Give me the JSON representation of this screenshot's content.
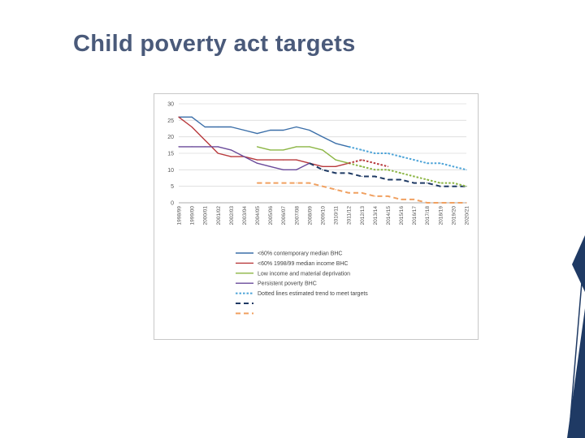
{
  "slide": {
    "title": "Child poverty act targets"
  },
  "colors": {
    "contemporary": "#3a6ea8",
    "median9899": "#b8393c",
    "deprivation": "#8bb543",
    "persistent": "#6a4a9a",
    "trend_blue": "#4ea4d8",
    "trend_dark": "#1f3a64",
    "trend_orange": "#f0a060",
    "accent": "#1f3a64"
  },
  "chart_data": {
    "type": "line",
    "title": "",
    "xlabel": "",
    "ylabel": "",
    "ylim": [
      0,
      30
    ],
    "yticks": [
      0,
      5,
      10,
      15,
      20,
      25,
      30
    ],
    "grid": true,
    "legend_position": "bottom",
    "categories": [
      "1998/99",
      "1999/00",
      "2000/01",
      "2001/02",
      "2002/03",
      "2003/04",
      "2004/05",
      "2005/06",
      "2006/07",
      "2007/08",
      "2008/09",
      "2009/10",
      "2010/11",
      "2011/12",
      "2012/13",
      "2013/14",
      "2014/15",
      "2015/16",
      "2016/17",
      "2017/18",
      "2018/19",
      "2019/20",
      "2020/21"
    ],
    "series": [
      {
        "name": "<60% contemporary median BHC",
        "style": "solid",
        "color_key": "contemporary",
        "values": [
          26,
          26,
          23,
          23,
          23,
          22,
          21,
          22,
          22,
          23,
          22,
          20,
          18,
          17,
          null,
          null,
          null,
          null,
          null,
          null,
          null,
          null,
          null
        ]
      },
      {
        "name": "<60% 1998/99 median income BHC",
        "style": "solid",
        "color_key": "median9899",
        "values": [
          26,
          23,
          19,
          15,
          14,
          14,
          13,
          13,
          13,
          13,
          12,
          11,
          11,
          12,
          null,
          null,
          null,
          null,
          null,
          null,
          null,
          null,
          null
        ]
      },
      {
        "name": "Low income and material deprivation",
        "style": "solid",
        "color_key": "deprivation",
        "values": [
          null,
          null,
          null,
          null,
          null,
          null,
          17,
          16,
          16,
          17,
          17,
          16,
          13,
          12,
          null,
          null,
          null,
          null,
          null,
          null,
          null,
          null,
          null
        ]
      },
      {
        "name": "Persistent poverty BHC",
        "style": "solid",
        "color_key": "persistent",
        "values": [
          17,
          17,
          17,
          17,
          16,
          14,
          12,
          11,
          10,
          10,
          12,
          null,
          null,
          null,
          null,
          null,
          null,
          null,
          null,
          null,
          null,
          null,
          null
        ]
      },
      {
        "name": "Dotted lines estimated trend to meet targets",
        "style": "dotted",
        "color_key": "trend_blue",
        "values": [
          null,
          null,
          null,
          null,
          null,
          null,
          null,
          null,
          null,
          null,
          null,
          null,
          null,
          17,
          16,
          15,
          15,
          14,
          13,
          12,
          12,
          11,
          10
        ]
      },
      {
        "name": "",
        "style": "dashed",
        "color_key": "trend_dark",
        "values": [
          null,
          null,
          null,
          null,
          null,
          null,
          null,
          null,
          null,
          null,
          12,
          10,
          9,
          9,
          8,
          8,
          7,
          7,
          6,
          6,
          5,
          5,
          5
        ]
      },
      {
        "name": "",
        "style": "dashed",
        "color_key": "trend_orange",
        "values": [
          null,
          null,
          null,
          null,
          null,
          null,
          6,
          6,
          6,
          6,
          6,
          5,
          4,
          3,
          3,
          2,
          2,
          1,
          1,
          0,
          0,
          0,
          0
        ]
      },
      {
        "name": "",
        "style": "dotted",
        "color_key": "deprivation",
        "values": [
          null,
          null,
          null,
          null,
          null,
          null,
          null,
          null,
          null,
          null,
          null,
          null,
          null,
          12,
          11,
          10,
          10,
          9,
          8,
          7,
          6,
          6,
          5
        ]
      },
      {
        "name": "",
        "style": "dotted",
        "color_key": "median9899",
        "values": [
          null,
          null,
          null,
          null,
          null,
          null,
          null,
          null,
          null,
          null,
          null,
          null,
          null,
          12,
          13,
          12,
          11,
          null,
          null,
          null,
          null,
          null,
          null
        ]
      }
    ],
    "legend": [
      {
        "label": "<60% contemporary median BHC",
        "style": "solid",
        "color_key": "contemporary"
      },
      {
        "label": "<60% 1998/99 median income BHC",
        "style": "solid",
        "color_key": "median9899"
      },
      {
        "label": "Low income and material deprivation",
        "style": "solid",
        "color_key": "deprivation"
      },
      {
        "label": "Persistent poverty BHC",
        "style": "solid",
        "color_key": "persistent"
      },
      {
        "label": "Dotted lines estimated trend to meet targets",
        "style": "dotted",
        "color_key": "trend_blue"
      },
      {
        "label": "",
        "style": "dashed",
        "color_key": "trend_dark"
      },
      {
        "label": "",
        "style": "dashed",
        "color_key": "trend_orange"
      }
    ]
  }
}
